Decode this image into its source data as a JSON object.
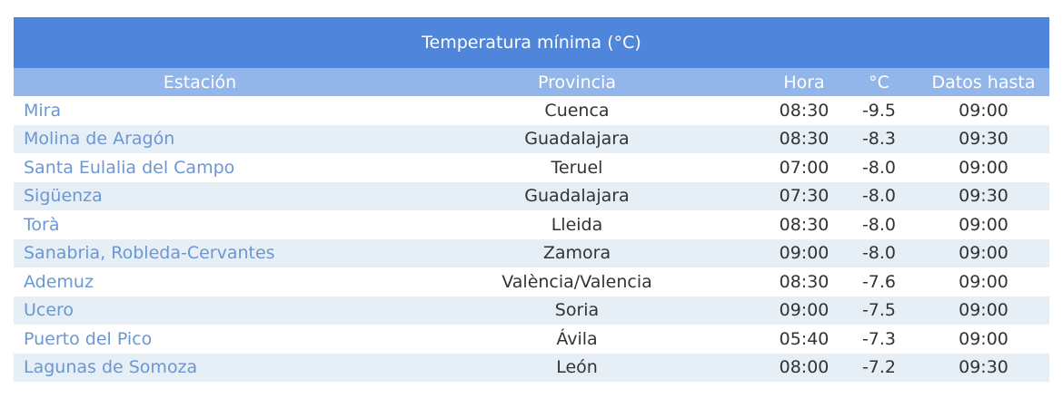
{
  "table": {
    "title": "Temperatura mínima (°C)",
    "headers": {
      "station": "Estación",
      "province": "Provincia",
      "hour": "Hora",
      "temp": "°C",
      "data_until": "Datos hasta"
    },
    "rows": [
      {
        "station": "Mira",
        "province": "Cuenca",
        "hour": "08:30",
        "temp": "-9.5",
        "data_until": "09:00"
      },
      {
        "station": "Molina de Aragón",
        "province": "Guadalajara",
        "hour": "08:30",
        "temp": "-8.3",
        "data_until": "09:30"
      },
      {
        "station": "Santa Eulalia del Campo",
        "province": "Teruel",
        "hour": "07:00",
        "temp": "-8.0",
        "data_until": "09:00"
      },
      {
        "station": "Sigüenza",
        "province": "Guadalajara",
        "hour": "07:30",
        "temp": "-8.0",
        "data_until": "09:30"
      },
      {
        "station": "Torà",
        "province": "Lleida",
        "hour": "08:30",
        "temp": "-8.0",
        "data_until": "09:00"
      },
      {
        "station": "Sanabria, Robleda-Cervantes",
        "province": "Zamora",
        "hour": "09:00",
        "temp": "-8.0",
        "data_until": "09:00"
      },
      {
        "station": "Ademuz",
        "province": "València/Valencia",
        "hour": "08:30",
        "temp": "-7.6",
        "data_until": "09:00"
      },
      {
        "station": "Ucero",
        "province": "Soria",
        "hour": "09:00",
        "temp": "-7.5",
        "data_until": "09:00"
      },
      {
        "station": "Puerto del Pico",
        "province": "Ávila",
        "hour": "05:40",
        "temp": "-7.3",
        "data_until": "09:00"
      },
      {
        "station": "Lagunas de Somoza",
        "province": "León",
        "hour": "08:00",
        "temp": "-7.2",
        "data_until": "09:30"
      }
    ]
  }
}
